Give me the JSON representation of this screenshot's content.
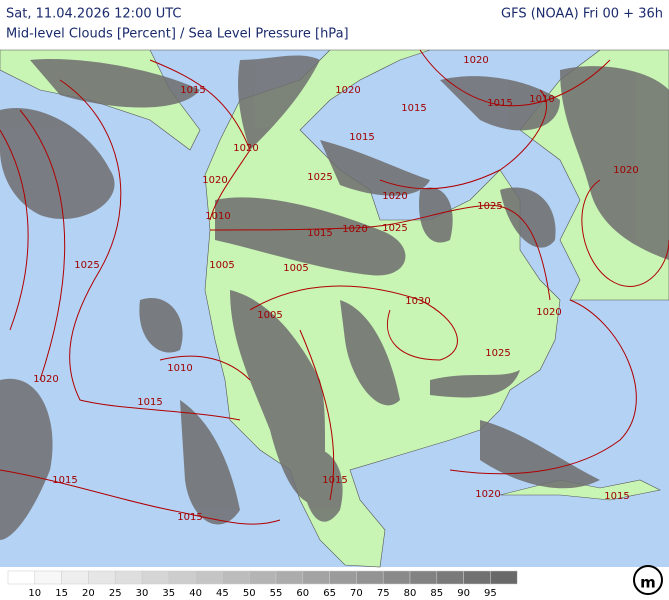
{
  "header": {
    "left": "Sat, 11.04.2026 12:00 UTC",
    "right": "GFS (NOAA) Fri 00 + 36h",
    "subtitle": "Mid-level Clouds [Percent] / Sea Level Pressure [hPa]"
  },
  "isobar_labels": [
    "1020",
    "1015",
    "1020",
    "1015",
    "1015",
    "1010",
    "1020",
    "1015",
    "1020",
    "1025",
    "1020",
    "1025",
    "1020",
    "1010",
    "1015",
    "1020",
    "1025",
    "1025",
    "1005",
    "1005",
    "1030",
    "1005",
    "1020",
    "1025",
    "1010",
    "1020",
    "1015",
    "1015",
    "1015",
    "1015",
    "1020",
    "1015"
  ],
  "legend": {
    "labels": [
      "10",
      "15",
      "20",
      "25",
      "30",
      "35",
      "40",
      "45",
      "50",
      "55",
      "60",
      "65",
      "70",
      "75",
      "80",
      "85",
      "90",
      "95"
    ]
  }
}
